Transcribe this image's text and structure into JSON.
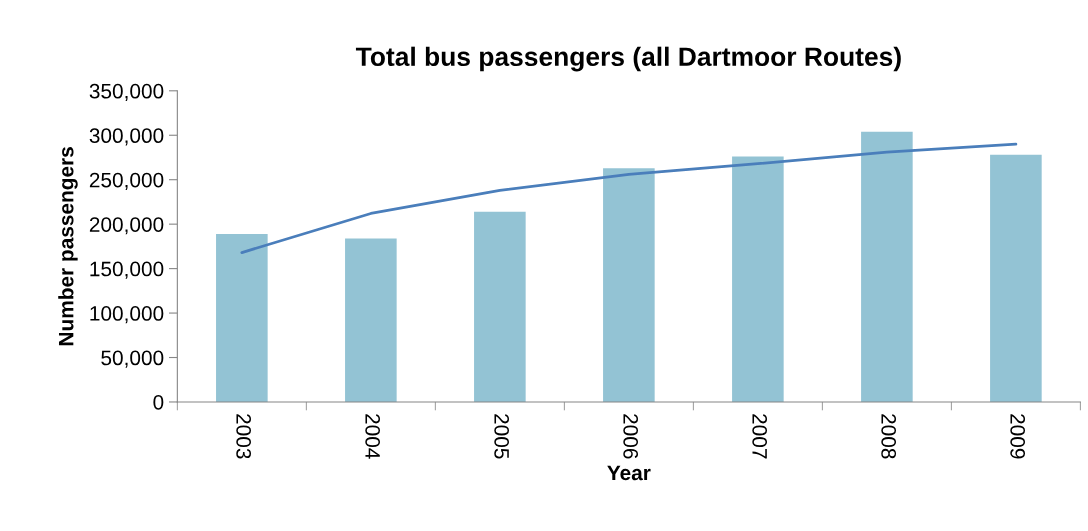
{
  "chart_data": {
    "type": "bar",
    "title": "Total bus passengers (all Dartmoor Routes)",
    "xlabel": "Year",
    "ylabel": "Number passengers",
    "categories": [
      "2003",
      "2004",
      "2005",
      "2006",
      "2007",
      "2008",
      "2009"
    ],
    "series": [
      {
        "color": "#93c3d4",
        "values": [
          189000,
          184000,
          214000,
          263000,
          276000,
          304000,
          278000
        ]
      },
      {
        "type": "line",
        "color": "#4a7ebb",
        "values": [
          168000,
          212000,
          238000,
          256000,
          268000,
          281000,
          290000
        ]
      }
    ],
    "ylim": [
      0,
      350000
    ],
    "yticks": [
      {
        "value": 0,
        "label": "0"
      },
      {
        "value": 50000,
        "label": "50,000"
      },
      {
        "value": 100000,
        "label": "100,000"
      },
      {
        "value": 150000,
        "label": "150,000"
      },
      {
        "value": 200000,
        "label": "200,000"
      },
      {
        "value": 250000,
        "label": "250,000"
      },
      {
        "value": 300000,
        "label": "300,000"
      },
      {
        "value": 350000,
        "label": "350,000"
      }
    ],
    "grid": false,
    "legend": false
  }
}
